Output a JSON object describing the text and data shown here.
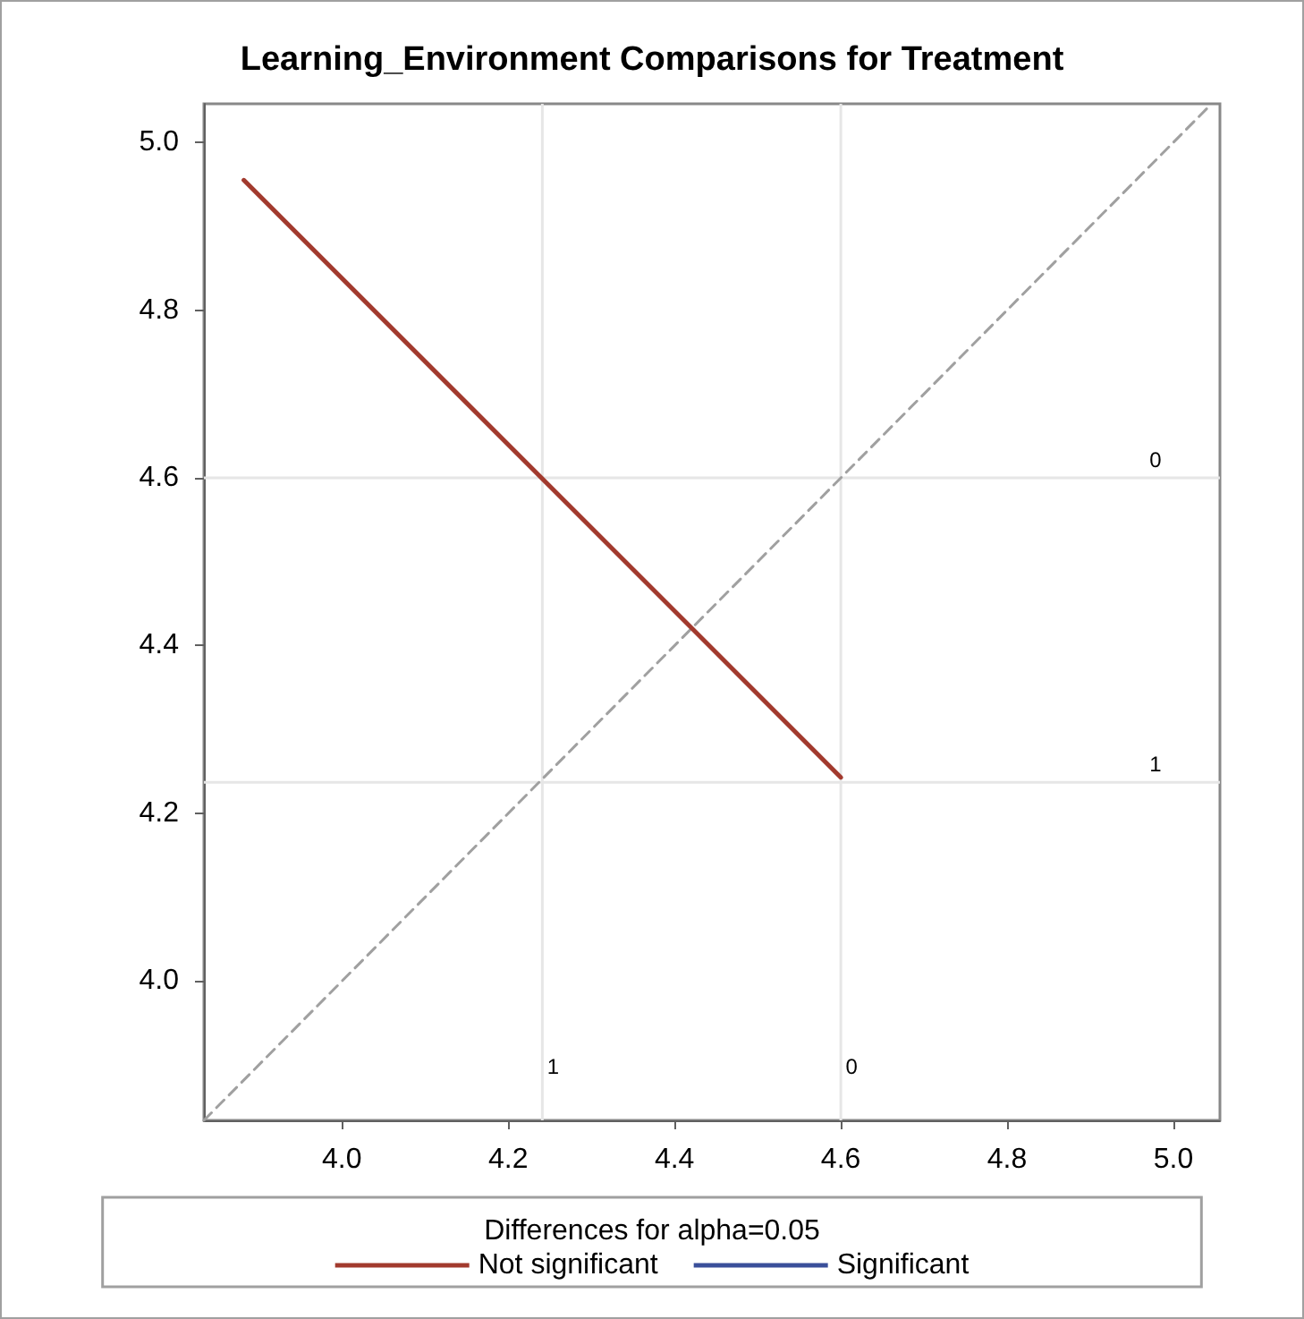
{
  "chart_data": {
    "type": "line",
    "title": "Learning_Environment Comparisons for Treatment",
    "legend_title": "Differences for alpha=0.05",
    "legend": "bottom",
    "marker": "none",
    "grid": false,
    "xlim": [
      3.834,
      5.056
    ],
    "ylim": [
      3.834,
      5.046
    ],
    "xticks": [
      {
        "value": 4.0,
        "label": "4.0"
      },
      4.2,
      4.4,
      4.6,
      4.8,
      {
        "value": 5.0,
        "label": "5.0"
      }
    ],
    "yticks": [
      {
        "value": 4.0,
        "label": "4.0"
      },
      4.2,
      4.4,
      4.6,
      4.8,
      {
        "value": 5.0,
        "label": "5.0"
      }
    ],
    "series": [
      {
        "name": "Not significant",
        "color": "#a23a2e",
        "x": [
          3.882,
          4.6
        ],
        "values": [
          4.955,
          4.243
        ],
        "line_style": "solid"
      },
      {
        "name": "Significant",
        "color": "#3a4f9a",
        "line_style": "solid"
      },
      {
        "color": "#a0a0a0",
        "x": [
          3.834,
          5.046
        ],
        "values": [
          3.834,
          5.046
        ],
        "line_style": "dashed"
      }
    ],
    "ref_lines": [
      {
        "axis": "x",
        "value": 4.241,
        "color": "#e6e6e6"
      },
      {
        "axis": "x",
        "value": 4.6,
        "color": "#e6e6e6"
      },
      {
        "axis": "y",
        "value": 4.6,
        "color": "#e6e6e6"
      },
      {
        "axis": "y",
        "value": 4.237,
        "color": "#e6e6e6"
      }
    ],
    "annotations": [
      {
        "text": "1",
        "x": 4.241
      },
      {
        "text": "0",
        "x": 4.6
      },
      {
        "text": "0",
        "y": 4.6
      },
      {
        "text": "1",
        "y": 4.237
      }
    ]
  }
}
